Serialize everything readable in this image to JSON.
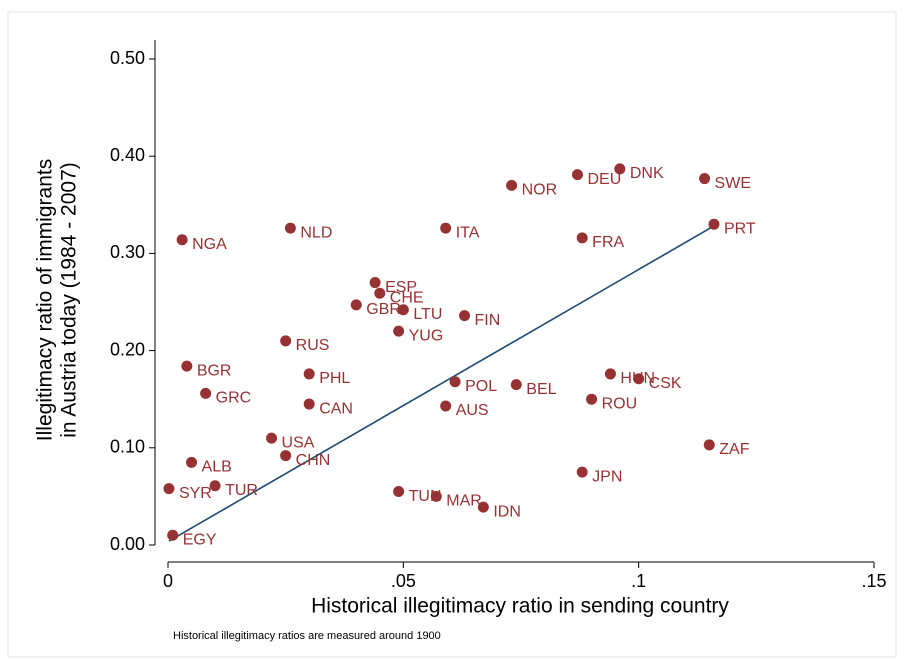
{
  "chart_data": {
    "type": "scatter",
    "x_label": "Historical illegitimacy ratio in sending country",
    "y_label": [
      "Illegitimacy ratio of immigrants",
      "in Austria today (1984 - 2007)"
    ],
    "note": "Historical illegitimacy ratios are measured around 1900",
    "xlim": [
      0,
      0.15
    ],
    "ylim": [
      0,
      0.5
    ],
    "xticks": [
      0,
      {
        "value": 0.05,
        "label": ".05"
      },
      {
        "value": 0.1,
        "label": ".1"
      },
      {
        "value": 0.15,
        "label": ".15"
      }
    ],
    "yticks": [
      {
        "value": 0,
        "label": "0.00"
      },
      {
        "value": 0.1,
        "label": "0.10"
      },
      {
        "value": 0.2,
        "label": "0.20"
      },
      {
        "value": 0.3,
        "label": "0.30"
      },
      {
        "value": 0.4,
        "label": "0.40"
      },
      {
        "value": 0.5,
        "label": "0.50"
      }
    ],
    "color": "#973234",
    "series": [
      {
        "labels": [
          "SYR",
          "EGY",
          "NGA",
          "BGR",
          "ALB",
          "GRC",
          "TUR",
          "USA",
          "CHN",
          "RUS",
          "NLD",
          "PHL",
          "CAN",
          "GBR",
          "ESP",
          "CHE",
          "LTU",
          "YUG",
          "TUN",
          "MAR",
          "ITA",
          "AUS",
          "POL",
          "FIN",
          "IDN",
          "BEL",
          "NOR",
          "FRA",
          "JPN",
          "DEU",
          "DNK",
          "ROU",
          "HUN",
          "CSK",
          "SWE",
          "ZAF",
          "PRT"
        ],
        "x": [
          0.0002,
          0.001,
          0.003,
          0.004,
          0.005,
          0.008,
          0.01,
          0.022,
          0.025,
          0.025,
          0.026,
          0.03,
          0.03,
          0.04,
          0.044,
          0.045,
          0.05,
          0.049,
          0.049,
          0.057,
          0.059,
          0.059,
          0.061,
          0.063,
          0.067,
          0.074,
          0.073,
          0.088,
          0.088,
          0.087,
          0.096,
          0.09,
          0.094,
          0.1,
          0.114,
          0.115,
          0.116
        ],
        "values": [
          0.058,
          0.01,
          0.314,
          0.184,
          0.085,
          0.156,
          0.061,
          0.11,
          0.092,
          0.21,
          0.326,
          0.176,
          0.145,
          0.247,
          0.27,
          0.259,
          0.242,
          0.22,
          0.055,
          0.05,
          0.326,
          0.143,
          0.168,
          0.236,
          0.039,
          0.165,
          0.37,
          0.316,
          0.075,
          0.381,
          0.387,
          0.15,
          0.176,
          0.171,
          0.377,
          0.103,
          0.33
        ]
      }
    ],
    "fit_line": {
      "color": "#1e4a78",
      "x": [
        0.0002,
        0.1159
      ],
      "values": [
        0.004,
        0.328
      ]
    }
  }
}
